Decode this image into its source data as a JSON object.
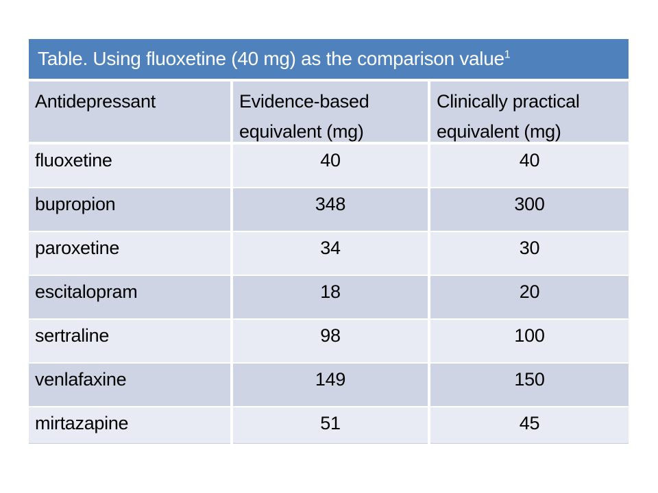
{
  "slide": {
    "title": "Table. Using fluoxetine (40 mg) as the comparison value",
    "title_footnote_marker": "1",
    "columns": [
      "Antidepressant",
      "Evidence-based equivalent (mg)",
      "Clinically practical equivalent (mg)"
    ],
    "rows": [
      {
        "drug": "fluoxetine",
        "evidence": "40",
        "practical": "40"
      },
      {
        "drug": "bupropion",
        "evidence": "348",
        "practical": "300"
      },
      {
        "drug": "paroxetine",
        "evidence": "34",
        "practical": "30"
      },
      {
        "drug": "escitalopram",
        "evidence": "18",
        "practical": "20"
      },
      {
        "drug": "sertraline",
        "evidence": "98",
        "practical": "100"
      },
      {
        "drug": "venlafaxine",
        "evidence": "149",
        "practical": "150"
      },
      {
        "drug": "mirtazapine",
        "evidence": "51",
        "practical": "45"
      }
    ],
    "colors": {
      "title_bg": "#4F81BD",
      "title_text": "#FFFFFF",
      "header_bg": "#CFD4E4",
      "band_light": "#E9EBF4",
      "band_dark": "#CFD4E4",
      "page_bg": "#FFFFFF",
      "body_text": "#000000"
    }
  },
  "chart_data": {
    "type": "table",
    "title": "Table. Using fluoxetine (40 mg) as the comparison value¹",
    "columns": [
      "Antidepressant",
      "Evidence-based equivalent (mg)",
      "Clinically practical equivalent (mg)"
    ],
    "rows": [
      [
        "fluoxetine",
        40,
        40
      ],
      [
        "bupropion",
        348,
        300
      ],
      [
        "paroxetine",
        34,
        30
      ],
      [
        "escitalopram",
        18,
        20
      ],
      [
        "sertraline",
        98,
        100
      ],
      [
        "venlafaxine",
        149,
        150
      ],
      [
        "mirtazapine",
        51,
        45
      ]
    ]
  }
}
